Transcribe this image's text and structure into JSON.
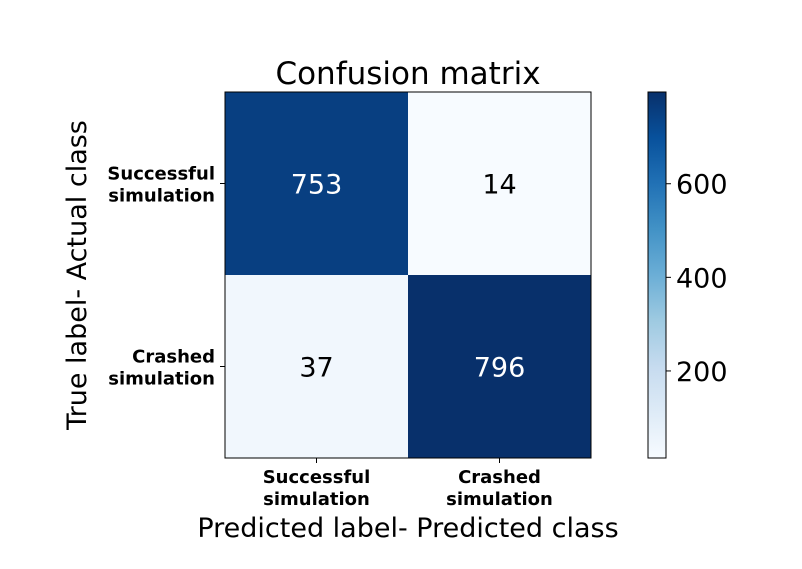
{
  "chart_data": {
    "type": "heatmap",
    "title": "Confusion matrix",
    "xlabel": "Predicted label- Predicted class",
    "ylabel": "True label- Actual class",
    "x_categories": [
      "Successful\nsimulation",
      "Crashed\nsimulation"
    ],
    "y_categories": [
      "Successful\nsimulation",
      "Crashed\nsimulation"
    ],
    "matrix": [
      [
        753,
        14
      ],
      [
        37,
        796
      ]
    ],
    "colormap": "Blues",
    "colorbar": {
      "min": 14,
      "max": 796,
      "ticks": [
        200,
        400,
        600
      ]
    },
    "grid": false
  }
}
